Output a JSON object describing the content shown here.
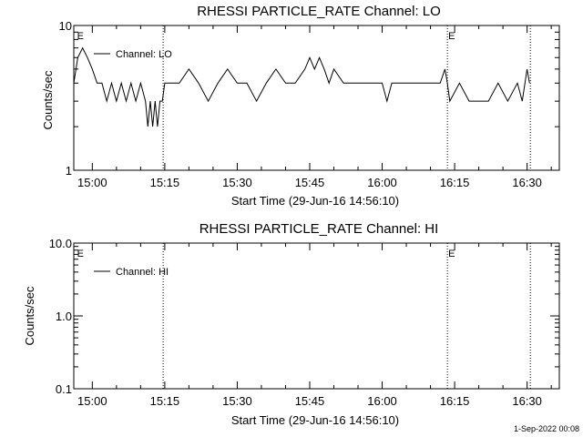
{
  "footer": {
    "timestamp": "1-Sep-2022 00:08"
  },
  "chart_data": [
    {
      "type": "line",
      "title": "RHESSI PARTICLE_RATE Channel: LO",
      "xlabel": "Start Time (29-Jun-16 14:56:10)",
      "ylabel": "Counts/sec",
      "yscale": "log",
      "ylim": [
        1,
        10
      ],
      "y_ticks": [
        "1",
        "10"
      ],
      "x_ticks": [
        "15:00",
        "15:15",
        "15:30",
        "15:45",
        "16:00",
        "16:15",
        "16:30"
      ],
      "xlim": [
        "14:56:10",
        "16:36:40"
      ],
      "event_markers": [
        {
          "label": "E",
          "time": "14:56:40"
        },
        {
          "label": "E",
          "time": "16:13:30"
        }
      ],
      "vertical_lines": [
        "15:14:40",
        "16:13:30",
        "16:30:40"
      ],
      "legend": {
        "placement": "top-left",
        "entries": [
          "Channel: LO"
        ]
      },
      "series": [
        {
          "name": "Channel: LO",
          "x": [
            "14:56:10",
            "14:57:00",
            "14:58:00",
            "14:59:00",
            "15:00:00",
            "15:01:00",
            "15:02:00",
            "15:03:00",
            "15:04:00",
            "15:05:00",
            "15:06:00",
            "15:07:00",
            "15:08:00",
            "15:09:00",
            "15:10:00",
            "15:11:00",
            "15:11:30",
            "15:12:00",
            "15:12:30",
            "15:13:00",
            "15:13:30",
            "15:14:00",
            "15:14:30",
            "15:15:00",
            "15:16:00",
            "15:18:00",
            "15:20:00",
            "15:22:00",
            "15:24:00",
            "15:26:00",
            "15:28:00",
            "15:30:00",
            "15:32:00",
            "15:34:00",
            "15:36:00",
            "15:38:00",
            "15:40:00",
            "15:42:00",
            "15:44:00",
            "15:45:00",
            "15:46:00",
            "15:47:00",
            "15:48:00",
            "15:49:00",
            "15:50:00",
            "15:52:00",
            "15:54:00",
            "15:56:00",
            "15:58:00",
            "16:00:00",
            "16:01:00",
            "16:02:00",
            "16:04:00",
            "16:06:00",
            "16:08:00",
            "16:10:00",
            "16:12:00",
            "16:13:00",
            "16:13:30",
            "16:14:00",
            "16:16:00",
            "16:18:00",
            "16:20:00",
            "16:22:00",
            "16:24:00",
            "16:26:00",
            "16:28:00",
            "16:29:00",
            "16:30:00",
            "16:30:30"
          ],
          "values": [
            4,
            6,
            7,
            6,
            5,
            4,
            4,
            3,
            4,
            3,
            4,
            3,
            4,
            3,
            4,
            3,
            2,
            3,
            2,
            3,
            2,
            3,
            3,
            4,
            4,
            4,
            5,
            4,
            3,
            4,
            5,
            4,
            4,
            3,
            4,
            5,
            4,
            4,
            5,
            6,
            5,
            6,
            5,
            4,
            5,
            4,
            4,
            4,
            4,
            4,
            3,
            4,
            4,
            4,
            4,
            4,
            4,
            5,
            4,
            3,
            4,
            3,
            3,
            3,
            4,
            3,
            4,
            3,
            5,
            4
          ]
        }
      ]
    },
    {
      "type": "line",
      "title": "RHESSI PARTICLE_RATE Channel: HI",
      "xlabel": "Start Time (29-Jun-16 14:56:10)",
      "ylabel": "Counts/sec",
      "yscale": "log",
      "ylim": [
        0.1,
        10
      ],
      "y_ticks": [
        "0.1",
        "1.0",
        "10.0"
      ],
      "x_ticks": [
        "15:00",
        "15:15",
        "15:30",
        "15:45",
        "16:00",
        "16:15",
        "16:30"
      ],
      "xlim": [
        "14:56:10",
        "16:36:40"
      ],
      "event_markers": [
        {
          "label": "E",
          "time": "14:56:40"
        },
        {
          "label": "E",
          "time": "16:13:30"
        }
      ],
      "vertical_lines": [
        "15:14:40",
        "16:13:30",
        "16:30:40"
      ],
      "legend": {
        "placement": "top-left",
        "entries": [
          "Channel: HI"
        ]
      },
      "series": [
        {
          "name": "Channel: HI",
          "x": [],
          "values": []
        }
      ]
    }
  ]
}
